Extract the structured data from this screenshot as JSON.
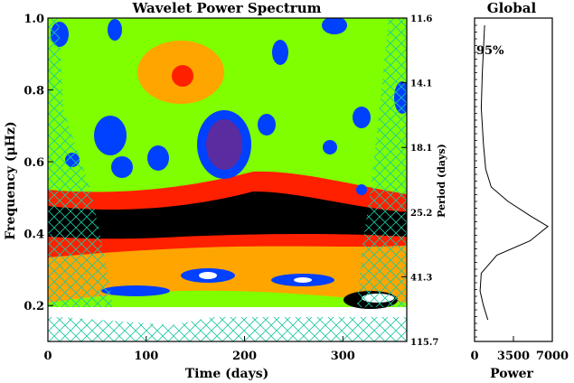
{
  "chart_data": [
    {
      "type": "heatmap",
      "title": "Wavelet Power Spectrum",
      "xlabel": "Time (days)",
      "ylabel": "Frequency (μHz)",
      "y2label": "Period (days)",
      "xlim": [
        0,
        365
      ],
      "ylim": [
        0.1,
        1.0
      ],
      "xticks": [
        0,
        100,
        200,
        300
      ],
      "xticklabels": [
        "0",
        "100",
        "200",
        "300"
      ],
      "yticks": [
        0.2,
        0.4,
        0.6,
        0.8,
        1.0
      ],
      "yticklabels": [
        "0.2",
        "0.4",
        "0.6",
        "0.8",
        "1.0"
      ],
      "period_ticks": [
        {
          "freq": 1.0,
          "label": "11.6"
        },
        {
          "freq": 0.82,
          "label": "14.1"
        },
        {
          "freq": 0.64,
          "label": "18.1"
        },
        {
          "freq": 0.46,
          "label": "25.2"
        },
        {
          "freq": 0.28,
          "label": "41.3"
        },
        {
          "freq": 0.1,
          "label": "115.7"
        }
      ],
      "ridge": {
        "x": [
          0,
          60,
          120,
          180,
          230,
          260,
          290,
          320,
          365
        ],
        "y": [
          0.43,
          0.42,
          0.425,
          0.435,
          0.455,
          0.47,
          0.46,
          0.44,
          0.43
        ]
      },
      "peak_spots": [
        {
          "x": 140,
          "y": 0.84
        },
        {
          "x": 175,
          "y": 0.66
        },
        {
          "x": 200,
          "y": 0.66
        },
        {
          "x": 305,
          "y": 0.92
        },
        {
          "x": 160,
          "y": 0.28
        },
        {
          "x": 310,
          "y": 0.28
        }
      ],
      "grid": false
    },
    {
      "type": "line",
      "title": "Global",
      "xlabel": "Power",
      "xlim": [
        0,
        7000
      ],
      "ylim": [
        0.1,
        1.0
      ],
      "xticks": [
        0,
        3500,
        7000
      ],
      "xticklabels": [
        "0",
        "3500",
        "7000"
      ],
      "annotation": "95%",
      "series": [
        {
          "name": "",
          "x": [
            900,
            700,
            600,
            800,
            1000,
            1500,
            3000,
            5000,
            6600,
            5000,
            2000,
            600,
            500,
            800,
            1200
          ],
          "y": [
            0.98,
            0.85,
            0.75,
            0.65,
            0.58,
            0.53,
            0.49,
            0.45,
            0.42,
            0.38,
            0.34,
            0.29,
            0.24,
            0.2,
            0.16
          ]
        }
      ]
    }
  ]
}
